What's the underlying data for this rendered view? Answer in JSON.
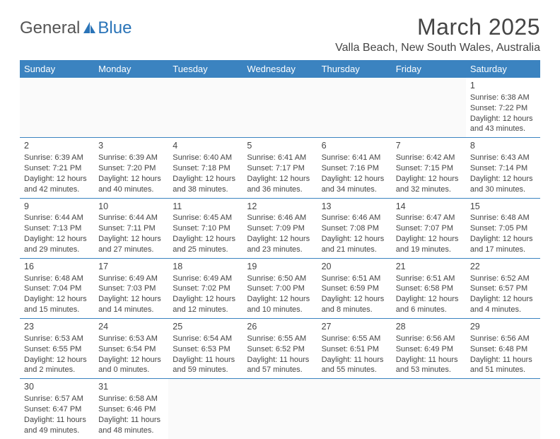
{
  "logo": {
    "part1": "General",
    "part2": "Blue",
    "icon_color": "#2a74b8"
  },
  "header": {
    "title": "March 2025",
    "location": "Valla Beach, New South Wales, Australia"
  },
  "colors": {
    "header_bg": "#3b83c0",
    "header_fg": "#ffffff",
    "rule": "#3b83c0",
    "text": "#454545",
    "empty_bg": "#fafafa"
  },
  "days_of_week": [
    "Sunday",
    "Monday",
    "Tuesday",
    "Wednesday",
    "Thursday",
    "Friday",
    "Saturday"
  ],
  "weeks": [
    [
      null,
      null,
      null,
      null,
      null,
      null,
      {
        "n": "1",
        "sunrise": "Sunrise: 6:38 AM",
        "sunset": "Sunset: 7:22 PM",
        "day1": "Daylight: 12 hours",
        "day2": "and 43 minutes."
      }
    ],
    [
      {
        "n": "2",
        "sunrise": "Sunrise: 6:39 AM",
        "sunset": "Sunset: 7:21 PM",
        "day1": "Daylight: 12 hours",
        "day2": "and 42 minutes."
      },
      {
        "n": "3",
        "sunrise": "Sunrise: 6:39 AM",
        "sunset": "Sunset: 7:20 PM",
        "day1": "Daylight: 12 hours",
        "day2": "and 40 minutes."
      },
      {
        "n": "4",
        "sunrise": "Sunrise: 6:40 AM",
        "sunset": "Sunset: 7:18 PM",
        "day1": "Daylight: 12 hours",
        "day2": "and 38 minutes."
      },
      {
        "n": "5",
        "sunrise": "Sunrise: 6:41 AM",
        "sunset": "Sunset: 7:17 PM",
        "day1": "Daylight: 12 hours",
        "day2": "and 36 minutes."
      },
      {
        "n": "6",
        "sunrise": "Sunrise: 6:41 AM",
        "sunset": "Sunset: 7:16 PM",
        "day1": "Daylight: 12 hours",
        "day2": "and 34 minutes."
      },
      {
        "n": "7",
        "sunrise": "Sunrise: 6:42 AM",
        "sunset": "Sunset: 7:15 PM",
        "day1": "Daylight: 12 hours",
        "day2": "and 32 minutes."
      },
      {
        "n": "8",
        "sunrise": "Sunrise: 6:43 AM",
        "sunset": "Sunset: 7:14 PM",
        "day1": "Daylight: 12 hours",
        "day2": "and 30 minutes."
      }
    ],
    [
      {
        "n": "9",
        "sunrise": "Sunrise: 6:44 AM",
        "sunset": "Sunset: 7:13 PM",
        "day1": "Daylight: 12 hours",
        "day2": "and 29 minutes."
      },
      {
        "n": "10",
        "sunrise": "Sunrise: 6:44 AM",
        "sunset": "Sunset: 7:11 PM",
        "day1": "Daylight: 12 hours",
        "day2": "and 27 minutes."
      },
      {
        "n": "11",
        "sunrise": "Sunrise: 6:45 AM",
        "sunset": "Sunset: 7:10 PM",
        "day1": "Daylight: 12 hours",
        "day2": "and 25 minutes."
      },
      {
        "n": "12",
        "sunrise": "Sunrise: 6:46 AM",
        "sunset": "Sunset: 7:09 PM",
        "day1": "Daylight: 12 hours",
        "day2": "and 23 minutes."
      },
      {
        "n": "13",
        "sunrise": "Sunrise: 6:46 AM",
        "sunset": "Sunset: 7:08 PM",
        "day1": "Daylight: 12 hours",
        "day2": "and 21 minutes."
      },
      {
        "n": "14",
        "sunrise": "Sunrise: 6:47 AM",
        "sunset": "Sunset: 7:07 PM",
        "day1": "Daylight: 12 hours",
        "day2": "and 19 minutes."
      },
      {
        "n": "15",
        "sunrise": "Sunrise: 6:48 AM",
        "sunset": "Sunset: 7:05 PM",
        "day1": "Daylight: 12 hours",
        "day2": "and 17 minutes."
      }
    ],
    [
      {
        "n": "16",
        "sunrise": "Sunrise: 6:48 AM",
        "sunset": "Sunset: 7:04 PM",
        "day1": "Daylight: 12 hours",
        "day2": "and 15 minutes."
      },
      {
        "n": "17",
        "sunrise": "Sunrise: 6:49 AM",
        "sunset": "Sunset: 7:03 PM",
        "day1": "Daylight: 12 hours",
        "day2": "and 14 minutes."
      },
      {
        "n": "18",
        "sunrise": "Sunrise: 6:49 AM",
        "sunset": "Sunset: 7:02 PM",
        "day1": "Daylight: 12 hours",
        "day2": "and 12 minutes."
      },
      {
        "n": "19",
        "sunrise": "Sunrise: 6:50 AM",
        "sunset": "Sunset: 7:00 PM",
        "day1": "Daylight: 12 hours",
        "day2": "and 10 minutes."
      },
      {
        "n": "20",
        "sunrise": "Sunrise: 6:51 AM",
        "sunset": "Sunset: 6:59 PM",
        "day1": "Daylight: 12 hours",
        "day2": "and 8 minutes."
      },
      {
        "n": "21",
        "sunrise": "Sunrise: 6:51 AM",
        "sunset": "Sunset: 6:58 PM",
        "day1": "Daylight: 12 hours",
        "day2": "and 6 minutes."
      },
      {
        "n": "22",
        "sunrise": "Sunrise: 6:52 AM",
        "sunset": "Sunset: 6:57 PM",
        "day1": "Daylight: 12 hours",
        "day2": "and 4 minutes."
      }
    ],
    [
      {
        "n": "23",
        "sunrise": "Sunrise: 6:53 AM",
        "sunset": "Sunset: 6:55 PM",
        "day1": "Daylight: 12 hours",
        "day2": "and 2 minutes."
      },
      {
        "n": "24",
        "sunrise": "Sunrise: 6:53 AM",
        "sunset": "Sunset: 6:54 PM",
        "day1": "Daylight: 12 hours",
        "day2": "and 0 minutes."
      },
      {
        "n": "25",
        "sunrise": "Sunrise: 6:54 AM",
        "sunset": "Sunset: 6:53 PM",
        "day1": "Daylight: 11 hours",
        "day2": "and 59 minutes."
      },
      {
        "n": "26",
        "sunrise": "Sunrise: 6:55 AM",
        "sunset": "Sunset: 6:52 PM",
        "day1": "Daylight: 11 hours",
        "day2": "and 57 minutes."
      },
      {
        "n": "27",
        "sunrise": "Sunrise: 6:55 AM",
        "sunset": "Sunset: 6:51 PM",
        "day1": "Daylight: 11 hours",
        "day2": "and 55 minutes."
      },
      {
        "n": "28",
        "sunrise": "Sunrise: 6:56 AM",
        "sunset": "Sunset: 6:49 PM",
        "day1": "Daylight: 11 hours",
        "day2": "and 53 minutes."
      },
      {
        "n": "29",
        "sunrise": "Sunrise: 6:56 AM",
        "sunset": "Sunset: 6:48 PM",
        "day1": "Daylight: 11 hours",
        "day2": "and 51 minutes."
      }
    ],
    [
      {
        "n": "30",
        "sunrise": "Sunrise: 6:57 AM",
        "sunset": "Sunset: 6:47 PM",
        "day1": "Daylight: 11 hours",
        "day2": "and 49 minutes."
      },
      {
        "n": "31",
        "sunrise": "Sunrise: 6:58 AM",
        "sunset": "Sunset: 6:46 PM",
        "day1": "Daylight: 11 hours",
        "day2": "and 48 minutes."
      },
      null,
      null,
      null,
      null,
      null
    ]
  ]
}
